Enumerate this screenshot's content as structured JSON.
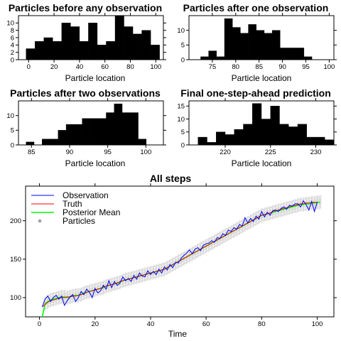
{
  "chart_data": [
    {
      "type": "bar",
      "title": "Particles before any observation",
      "xlabel": "Particle location",
      "ylabel": "",
      "bin_width": 7,
      "x_start": -2,
      "xlim": [
        -8,
        106
      ],
      "ylim": [
        0,
        12
      ],
      "xticks": [
        0,
        20,
        40,
        60,
        80,
        100
      ],
      "yticks": [
        0,
        2,
        4,
        6,
        8,
        10
      ],
      "values": [
        3,
        5,
        6,
        5,
        10,
        9,
        5,
        10,
        4,
        5,
        12,
        9,
        7,
        8,
        4
      ]
    },
    {
      "type": "bar",
      "title": "Particles after one observation",
      "xlabel": "Particle location",
      "ylabel": "",
      "bin_width": 1.7,
      "x_start": 72.5,
      "xlim": [
        70,
        101
      ],
      "ylim": [
        0,
        15
      ],
      "xticks": [
        75,
        80,
        85,
        90,
        95,
        100
      ],
      "yticks": [
        0,
        5,
        10
      ],
      "values": [
        1,
        3,
        1,
        14,
        11,
        9,
        12,
        10,
        9,
        10,
        4,
        4,
        4,
        1
      ]
    },
    {
      "type": "bar",
      "title": "Particles after two observations",
      "xlabel": "Particle location",
      "ylabel": "",
      "bin_width": 1.05,
      "x_start": 84.3,
      "xlim": [
        83.3,
        102.3
      ],
      "ylim": [
        0,
        15
      ],
      "xticks": [
        85,
        90,
        95,
        100
      ],
      "yticks": [
        0,
        5,
        10
      ],
      "values": [
        1,
        0,
        2,
        2,
        5,
        7,
        7,
        9,
        9,
        9,
        11,
        14,
        11,
        11,
        2
      ]
    },
    {
      "type": "bar",
      "title": "Final one-step-ahead prediction",
      "xlabel": "Particle location",
      "ylabel": "",
      "bin_width": 1,
      "x_start": 217,
      "xlim": [
        216,
        232
      ],
      "ylim": [
        0,
        17
      ],
      "xticks": [
        220,
        225,
        230
      ],
      "yticks": [
        0,
        5,
        10,
        15
      ],
      "values": [
        3,
        1,
        5,
        4,
        6,
        8,
        16,
        10,
        15,
        8,
        7,
        8,
        3,
        3,
        2
      ]
    },
    {
      "type": "line",
      "title": "All steps",
      "xlabel": "Time",
      "ylabel": "",
      "xlim": [
        -5,
        106
      ],
      "ylim": [
        75,
        245
      ],
      "xticks": [
        0,
        20,
        40,
        60,
        80,
        100
      ],
      "yticks": [
        100,
        150,
        200
      ],
      "legend_position": "top-left",
      "series": [
        {
          "name": "Observation",
          "color": "#0000ff",
          "x": [
            1,
            2,
            3,
            4,
            5,
            6,
            7,
            8,
            9,
            10,
            11,
            12,
            13,
            14,
            15,
            16,
            17,
            18,
            19,
            20,
            21,
            22,
            23,
            24,
            25,
            26,
            27,
            28,
            29,
            30,
            31,
            32,
            33,
            34,
            35,
            36,
            37,
            38,
            39,
            40,
            41,
            42,
            43,
            44,
            45,
            46,
            47,
            48,
            49,
            50,
            51,
            52,
            53,
            54,
            55,
            56,
            57,
            58,
            59,
            60,
            61,
            62,
            63,
            64,
            65,
            66,
            67,
            68,
            69,
            70,
            71,
            72,
            73,
            74,
            75,
            76,
            77,
            78,
            79,
            80,
            81,
            82,
            83,
            84,
            85,
            86,
            87,
            88,
            89,
            90,
            91,
            92,
            93,
            94,
            95,
            96,
            97,
            98,
            99,
            100
          ],
          "y": [
            88,
            98,
            102,
            95,
            100,
            103,
            98,
            102,
            90,
            96,
            101,
            104,
            95,
            100,
            108,
            104,
            111,
            107,
            100,
            112,
            106,
            109,
            116,
            111,
            122,
            113,
            121,
            116,
            119,
            127,
            122,
            125,
            121,
            129,
            124,
            132,
            128,
            127,
            135,
            130,
            134,
            130,
            137,
            132,
            140,
            136,
            143,
            139,
            146,
            145,
            151,
            155,
            158,
            162,
            157,
            163,
            165,
            161,
            168,
            170,
            171,
            174,
            172,
            178,
            177,
            183,
            181,
            188,
            186,
            191,
            189,
            195,
            193,
            204,
            197,
            203,
            199,
            206,
            202,
            212,
            205,
            211,
            207,
            213,
            214,
            212,
            216,
            218,
            215,
            220,
            219,
            222,
            222,
            218,
            226,
            221,
            214,
            225,
            212,
            224
          ]
        },
        {
          "name": "Truth",
          "color": "#ff0000",
          "x": [
            1,
            2,
            3,
            4,
            5,
            6,
            7,
            8,
            9,
            10,
            11,
            12,
            13,
            14,
            15,
            16,
            17,
            18,
            19,
            20,
            21,
            22,
            23,
            24,
            25,
            26,
            27,
            28,
            29,
            30,
            31,
            32,
            33,
            34,
            35,
            36,
            37,
            38,
            39,
            40,
            41,
            42,
            43,
            44,
            45,
            46,
            47,
            48,
            49,
            50,
            51,
            52,
            53,
            54,
            55,
            56,
            57,
            58,
            59,
            60,
            61,
            62,
            63,
            64,
            65,
            66,
            67,
            68,
            69,
            70,
            71,
            72,
            73,
            74,
            75,
            76,
            77,
            78,
            79,
            80,
            81,
            82,
            83,
            84,
            85,
            86,
            87,
            88,
            89,
            90,
            91,
            92,
            93,
            94,
            95,
            96,
            97,
            98,
            99,
            100
          ],
          "y": [
            88,
            91,
            94,
            96,
            97,
            98,
            99,
            100,
            100,
            101,
            101,
            102,
            102,
            103,
            104,
            105,
            107,
            108,
            109,
            110,
            111,
            112,
            114,
            115,
            116,
            117,
            118,
            119,
            121,
            122,
            123,
            124,
            125,
            126,
            127,
            128,
            129,
            130,
            131,
            132,
            133,
            134,
            135,
            136,
            137,
            139,
            141,
            143,
            145,
            147,
            149,
            151,
            153,
            155,
            157,
            159,
            161,
            163,
            165,
            167,
            169,
            171,
            173,
            175,
            177,
            179,
            181,
            183,
            185,
            187,
            189,
            191,
            193,
            195,
            197,
            199,
            201,
            203,
            205,
            207,
            208,
            209,
            210,
            212,
            213,
            214,
            215,
            216,
            217,
            218,
            219,
            220,
            221,
            222,
            222,
            223,
            223,
            224,
            224,
            224
          ]
        },
        {
          "name": "Posterior Mean",
          "color": "#00ff00",
          "x": [
            1,
            2,
            3,
            4,
            5,
            6,
            7,
            8,
            9,
            10,
            11,
            12,
            13,
            14,
            15,
            16,
            17,
            18,
            19,
            20,
            21,
            22,
            23,
            24,
            25,
            26,
            27,
            28,
            29,
            30,
            31,
            32,
            33,
            34,
            35,
            36,
            37,
            38,
            39,
            40,
            41,
            42,
            43,
            44,
            45,
            46,
            47,
            48,
            49,
            50,
            51,
            52,
            53,
            54,
            55,
            56,
            57,
            58,
            59,
            60,
            61,
            62,
            63,
            64,
            65,
            66,
            67,
            68,
            69,
            70,
            71,
            72,
            73,
            74,
            75,
            76,
            77,
            78,
            79,
            80,
            81,
            82,
            83,
            84,
            85,
            86,
            87,
            88,
            89,
            90,
            91,
            92,
            93,
            94,
            95,
            96,
            97,
            98,
            99,
            100,
            101
          ],
          "y": [
            75,
            92,
            95,
            97,
            98,
            99,
            100,
            101,
            101,
            100,
            101,
            102,
            103,
            103,
            104,
            106,
            107,
            108,
            109,
            110,
            111,
            112,
            113,
            115,
            116,
            117,
            118,
            119,
            120,
            122,
            123,
            124,
            125,
            126,
            127,
            128,
            129,
            130,
            131,
            132,
            133,
            134,
            135,
            136,
            137,
            139,
            141,
            143,
            145,
            147,
            149,
            151,
            153,
            155,
            157,
            159,
            161,
            163,
            165,
            167,
            169,
            171,
            173,
            175,
            177,
            179,
            181,
            183,
            185,
            187,
            189,
            191,
            193,
            195,
            197,
            199,
            201,
            203,
            205,
            207,
            208,
            209,
            210,
            211,
            212,
            213,
            214,
            215,
            216,
            217,
            218,
            219,
            220,
            221,
            221,
            222,
            222,
            223,
            223,
            224,
            224
          ]
        },
        {
          "name": "Particles",
          "color": "#808080",
          "marker": "circle",
          "spread": 8
        }
      ]
    }
  ]
}
